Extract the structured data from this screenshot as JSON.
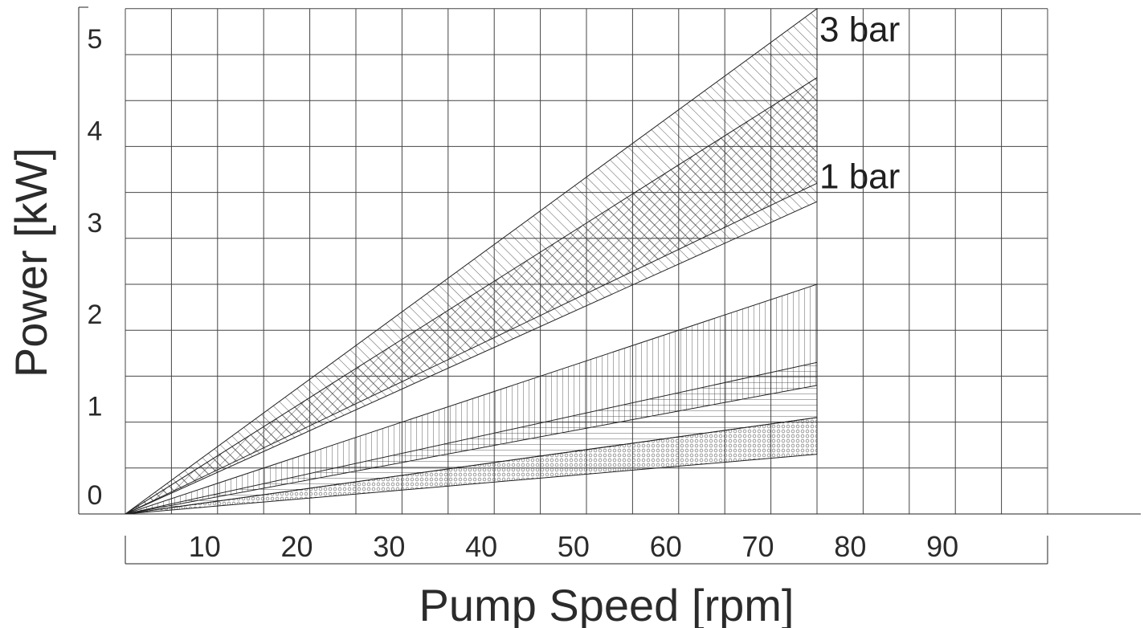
{
  "chart_data": {
    "type": "area",
    "title": "",
    "xlabel": "Pump Speed [rpm]",
    "ylabel": "Power [kW]",
    "xlim": [
      0,
      100
    ],
    "ylim": [
      0,
      5.5
    ],
    "x_ticks": [
      10,
      20,
      30,
      40,
      50,
      60,
      70,
      80,
      90
    ],
    "y_ticks": [
      0,
      1,
      2,
      3,
      4,
      5
    ],
    "x_grid_step": 5,
    "y_grid_step": 0.5,
    "grid": true,
    "legend": "none",
    "bands": [
      {
        "pattern": "diagonal",
        "x": [
          0,
          75
        ],
        "lower": [
          0,
          3.4
        ],
        "upper": [
          0,
          5.5
        ]
      },
      {
        "pattern": "crosshatch",
        "x": [
          0,
          75
        ],
        "lower": [
          0,
          3.6
        ],
        "upper": [
          0,
          4.75
        ]
      },
      {
        "pattern": "vertical",
        "x": [
          0,
          75
        ],
        "lower": [
          0,
          1.4
        ],
        "upper": [
          0,
          2.5
        ]
      },
      {
        "pattern": "horizontal",
        "x": [
          0,
          75
        ],
        "lower": [
          0,
          1.05
        ],
        "upper": [
          0,
          1.65
        ]
      },
      {
        "pattern": "dots",
        "x": [
          0,
          75
        ],
        "lower": [
          0,
          0.65
        ],
        "upper": [
          0,
          1.05
        ]
      }
    ],
    "annotations": [
      {
        "text": "3 bar",
        "x": 75,
        "y": 5.3
      },
      {
        "text": "1 bar",
        "x": 75,
        "y": 3.7
      }
    ]
  }
}
